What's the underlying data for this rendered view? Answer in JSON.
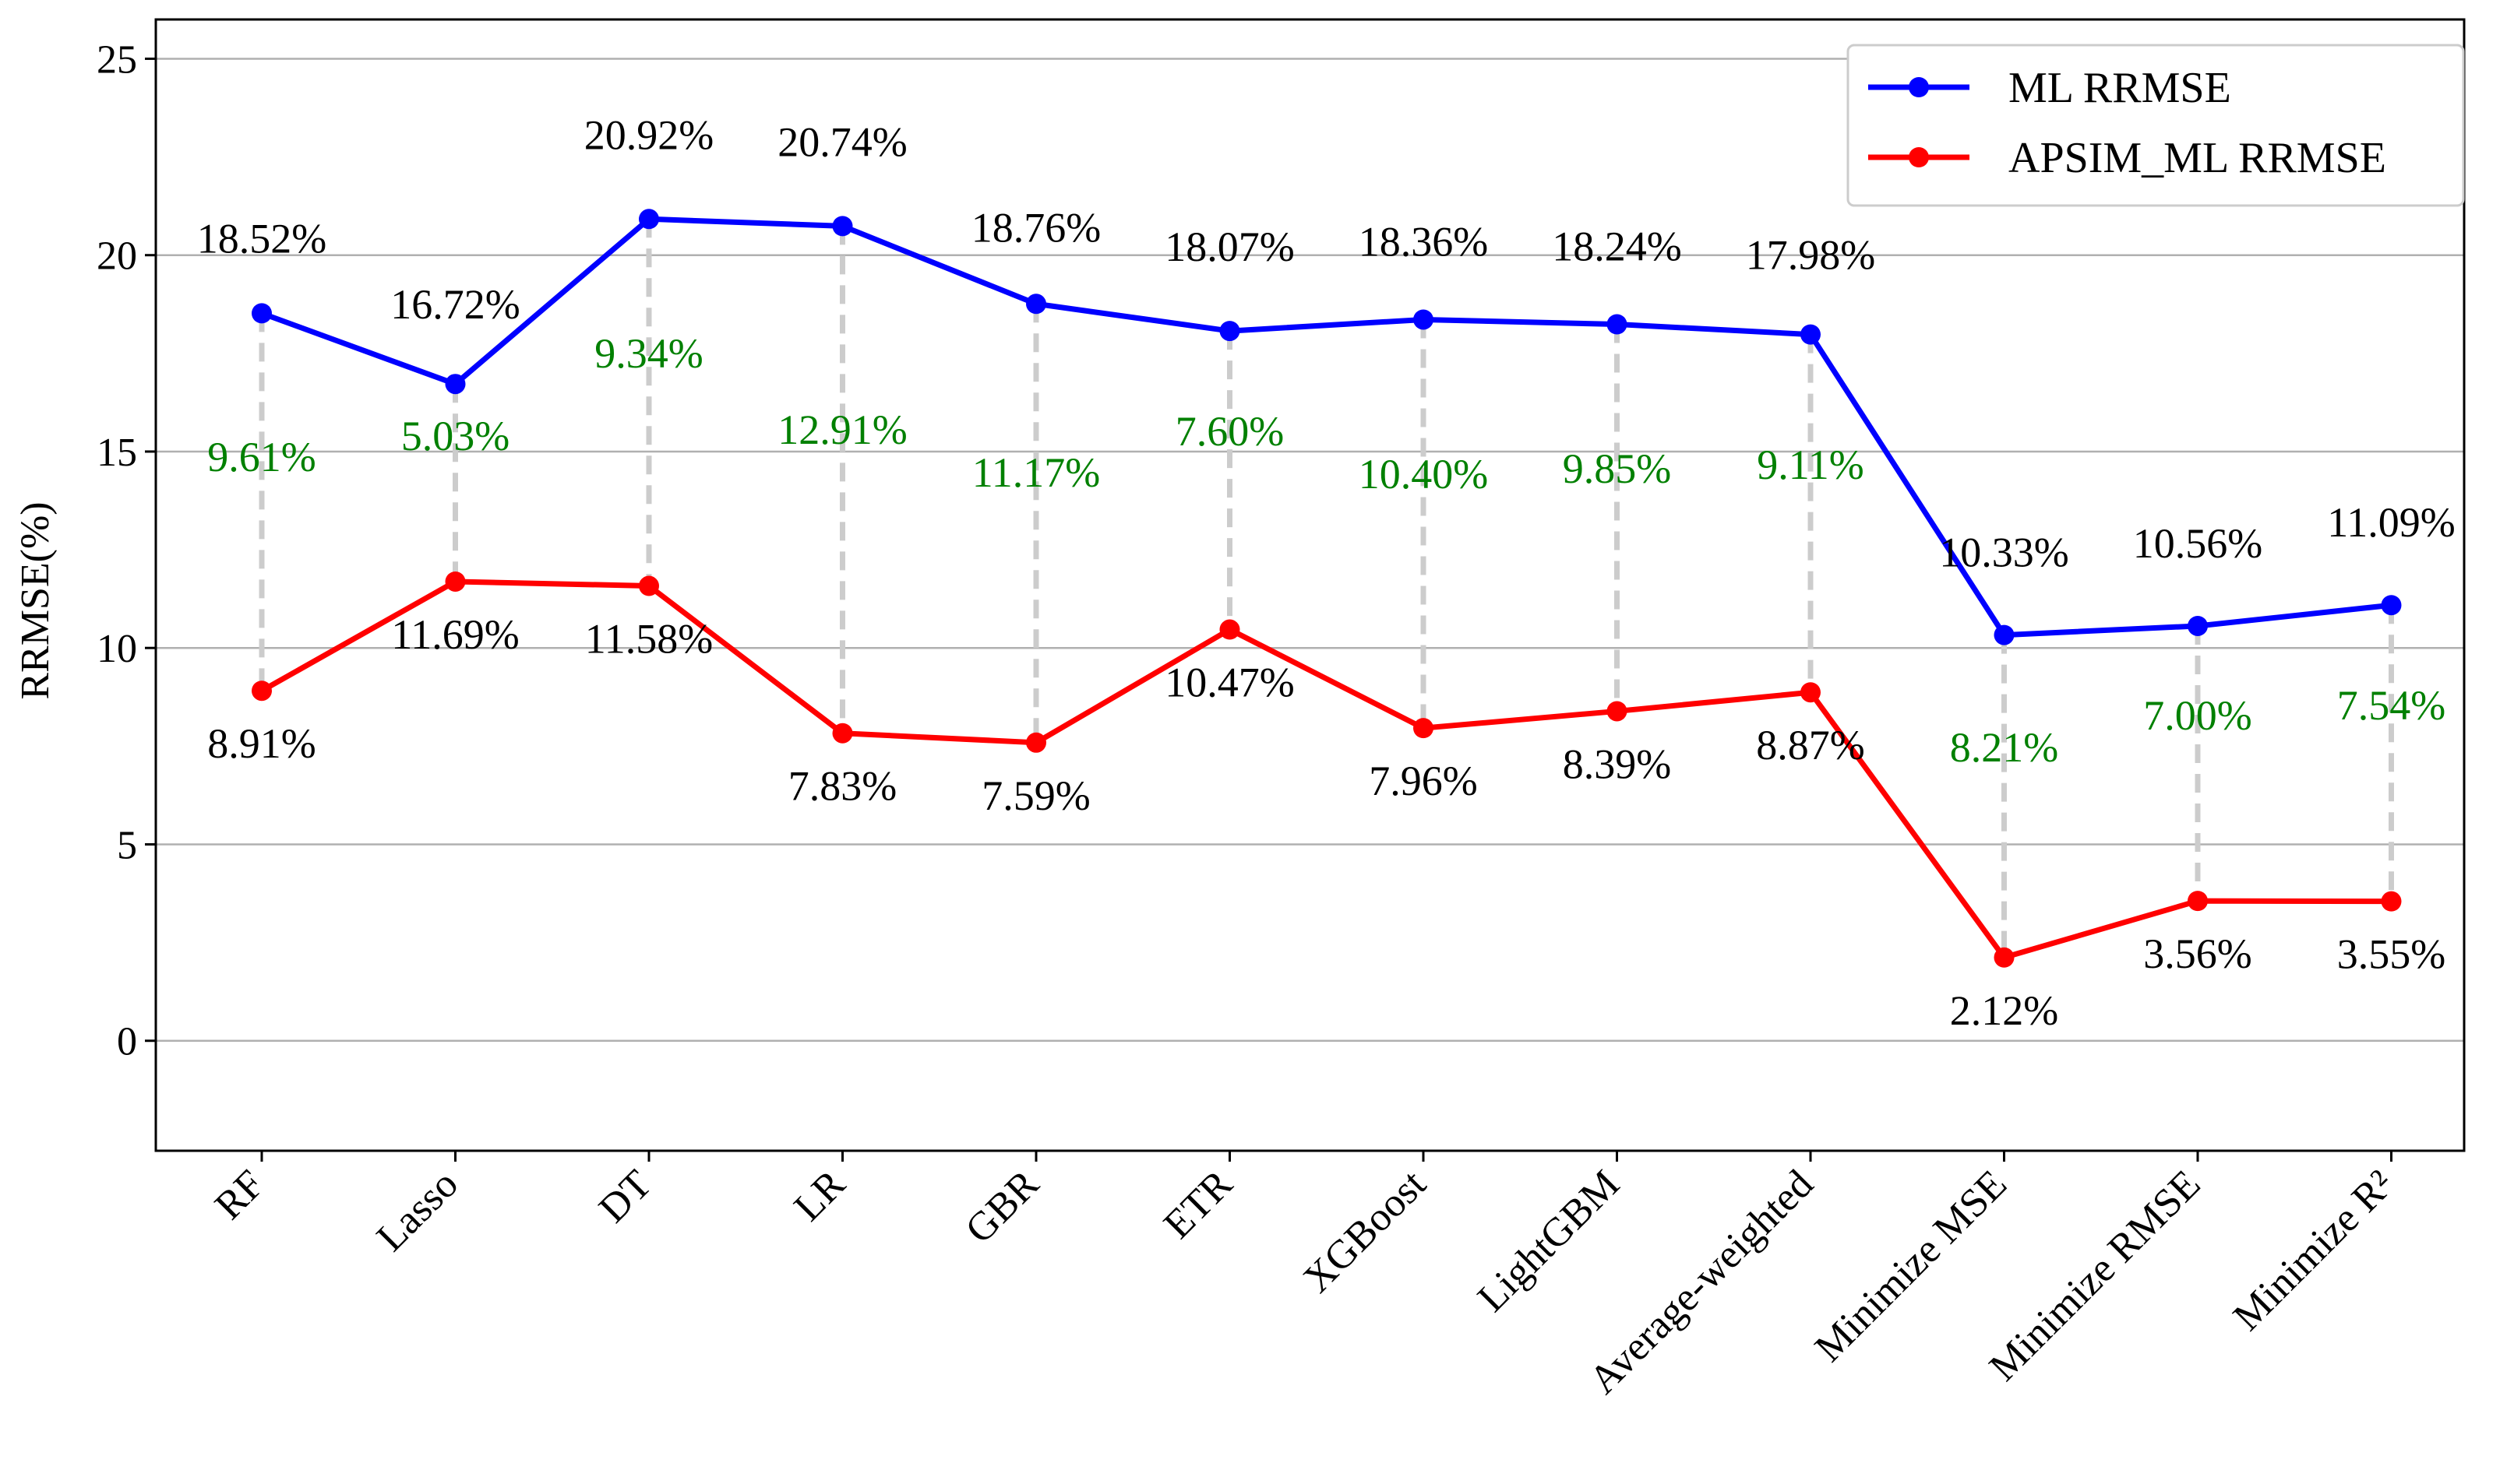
{
  "chart_data": {
    "type": "line",
    "title": "",
    "xlabel": "",
    "ylabel": "RRMSE(%)",
    "ylim": [
      -2.8,
      26
    ],
    "yticks": [
      0,
      5,
      10,
      15,
      20,
      25
    ],
    "grid": "horizontal",
    "legend_position": "top-right",
    "categories": [
      "RF",
      "Lasso",
      "DT",
      "LR",
      "GBR",
      "ETR",
      "XGBoost",
      "LightGBM",
      "Average-weighted",
      "Minimize MSE",
      "Minimize RMSE",
      "Minimize R²"
    ],
    "series": [
      {
        "name": "ML RRMSE",
        "color": "#0000ff",
        "values": [
          18.52,
          16.72,
          20.92,
          20.74,
          18.76,
          18.07,
          18.36,
          18.24,
          17.98,
          10.33,
          10.56,
          11.09
        ],
        "labels": [
          "18.52%",
          "16.72%",
          "20.92%",
          "20.74%",
          "18.76%",
          "18.07%",
          "18.36%",
          "18.24%",
          "17.98%",
          "10.33%",
          "10.56%",
          "11.09%"
        ]
      },
      {
        "name": "APSIM_ML RRMSE",
        "color": "#ff0000",
        "values": [
          8.91,
          11.69,
          11.58,
          7.83,
          7.59,
          10.47,
          7.96,
          8.39,
          8.87,
          2.12,
          3.56,
          3.55
        ],
        "labels": [
          "8.91%",
          "11.69%",
          "11.58%",
          "7.83%",
          "7.59%",
          "10.47%",
          "7.96%",
          "8.39%",
          "8.87%",
          "2.12%",
          "3.56%",
          "3.55%"
        ]
      }
    ],
    "differences": {
      "color": "#008000",
      "connector_color": "#cccccc",
      "labels": [
        "9.61%",
        "5.03%",
        "9.34%",
        "12.91%",
        "11.17%",
        "7.60%",
        "10.40%",
        "9.85%",
        "9.11%",
        "8.21%",
        "7.00%",
        "7.54%"
      ]
    }
  }
}
